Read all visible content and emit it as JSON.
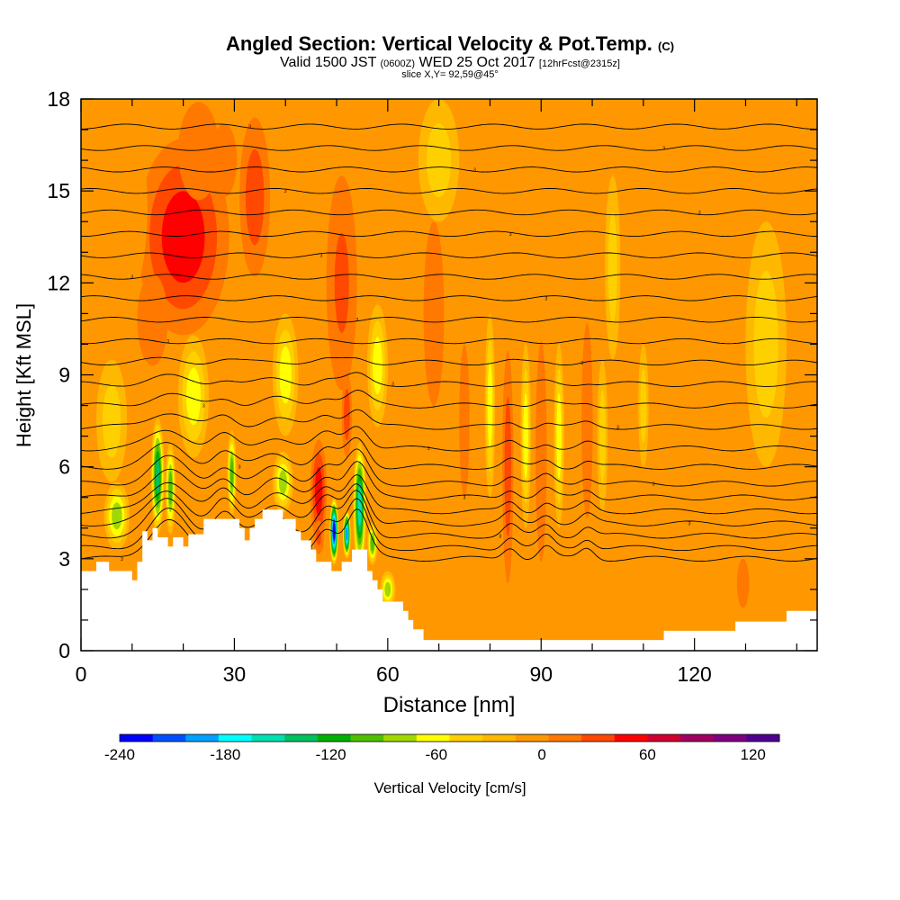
{
  "header": {
    "title_main": "Angled Section: Vertical Velocity & Pot.Temp.",
    "title_badge": "(C)",
    "subtitle_a": "Valid 1500 JST",
    "subtitle_b": "(0600Z)",
    "subtitle_c": "WED 25 Oct 2017",
    "subtitle_d": "[12hrFcst@2315z]",
    "slice_info": "slice X,Y= 92,59@45°"
  },
  "chart_data": {
    "type": "heatmap",
    "title": "Angled Section: Vertical Velocity & Pot.Temp.",
    "xlabel": "Distance [nm]",
    "ylabel": "Height [Kft MSL]",
    "xlim": [
      0,
      144
    ],
    "ylim": [
      0,
      18
    ],
    "x_ticks": [
      0,
      30,
      60,
      90,
      120
    ],
    "x_tick_labels": [
      "0",
      "30",
      "60",
      "90",
      "120"
    ],
    "y_ticks": [
      0,
      3,
      6,
      9,
      12,
      15,
      18
    ],
    "y_tick_labels": [
      "0",
      "3",
      "6",
      "9",
      "12",
      "15",
      "18"
    ],
    "colorbar": {
      "label": "Vertical Velocity [cm/s]",
      "min": -240,
      "max": 135,
      "step": 20,
      "tick_values": [
        -240,
        -180,
        -120,
        -60,
        0,
        60,
        120
      ],
      "tick_labels": [
        "-240",
        "-180",
        "-120",
        "-60",
        "0",
        "60",
        "120"
      ],
      "colors": [
        "#0000ff",
        "#0050ff",
        "#00a0ff",
        "#00ffff",
        "#00e0b0",
        "#00c060",
        "#00b000",
        "#50c000",
        "#a0d800",
        "#ffff00",
        "#ffd000",
        "#ffb800",
        "#ff9800",
        "#ff7800",
        "#ff4800",
        "#ff0000",
        "#d00030",
        "#a00060",
        "#800080",
        "#500090"
      ]
    },
    "background_value": 5,
    "terrain_kft": [
      [
        0,
        2.6
      ],
      [
        3,
        2.6
      ],
      [
        3,
        2.9
      ],
      [
        5.5,
        2.9
      ],
      [
        5.5,
        2.6
      ],
      [
        10,
        2.6
      ],
      [
        10,
        2.3
      ],
      [
        11,
        2.3
      ],
      [
        11,
        2.9
      ],
      [
        12,
        2.9
      ],
      [
        12,
        3.9
      ],
      [
        13,
        3.9
      ],
      [
        13,
        3.6
      ],
      [
        14,
        3.6
      ],
      [
        14,
        4.0
      ],
      [
        15,
        4.0
      ],
      [
        15,
        3.7
      ],
      [
        17,
        3.7
      ],
      [
        17,
        3.4
      ],
      [
        18,
        3.4
      ],
      [
        18,
        3.7
      ],
      [
        20,
        3.7
      ],
      [
        20,
        3.4
      ],
      [
        21,
        3.4
      ],
      [
        21,
        3.8
      ],
      [
        24,
        3.8
      ],
      [
        24,
        4.3
      ],
      [
        31,
        4.3
      ],
      [
        31,
        4.0
      ],
      [
        32,
        4.0
      ],
      [
        32,
        3.6
      ],
      [
        33,
        3.6
      ],
      [
        33,
        4.0
      ],
      [
        34,
        4.0
      ],
      [
        34,
        4.3
      ],
      [
        35.5,
        4.3
      ],
      [
        35.5,
        4.6
      ],
      [
        39.5,
        4.6
      ],
      [
        39.5,
        4.3
      ],
      [
        42,
        4.3
      ],
      [
        42,
        3.9
      ],
      [
        43,
        3.9
      ],
      [
        43,
        3.6
      ],
      [
        45,
        3.6
      ],
      [
        45,
        3.3
      ],
      [
        46,
        3.3
      ],
      [
        46,
        2.9
      ],
      [
        49,
        2.9
      ],
      [
        49,
        2.6
      ],
      [
        51,
        2.6
      ],
      [
        51,
        2.9
      ],
      [
        53,
        2.9
      ],
      [
        53,
        3.3
      ],
      [
        56,
        3.3
      ],
      [
        56,
        2.6
      ],
      [
        57,
        2.6
      ],
      [
        57,
        2.3
      ],
      [
        58,
        2.3
      ],
      [
        58,
        2.0
      ],
      [
        59,
        2.0
      ],
      [
        59,
        1.6
      ],
      [
        63,
        1.6
      ],
      [
        63,
        1.3
      ],
      [
        64,
        1.3
      ],
      [
        64,
        1.0
      ],
      [
        65,
        1.0
      ],
      [
        65,
        0.7
      ],
      [
        67,
        0.7
      ],
      [
        67,
        0.35
      ],
      [
        114,
        0.35
      ],
      [
        114,
        0.65
      ],
      [
        128,
        0.65
      ],
      [
        128,
        0.95
      ],
      [
        138,
        0.95
      ],
      [
        138,
        1.3
      ],
      [
        144,
        1.3
      ]
    ],
    "cells": [
      {
        "x": 20,
        "y": 13.5,
        "sx": 9,
        "sy": 3.2,
        "v": 65
      },
      {
        "x": 14,
        "y": 10.8,
        "sx": 3,
        "sy": 1.5,
        "v": 30
      },
      {
        "x": 23,
        "y": 16.3,
        "sx": 4,
        "sy": 1.6,
        "v": 30
      },
      {
        "x": 34,
        "y": 14.8,
        "sx": 3,
        "sy": 2.6,
        "v": 45
      },
      {
        "x": 28,
        "y": 16.0,
        "sx": 2.5,
        "sy": 1.2,
        "v": 28
      },
      {
        "x": 51,
        "y": 12.0,
        "sx": 3,
        "sy": 3.5,
        "v": 55
      },
      {
        "x": 52,
        "y": 7.7,
        "sx": 1,
        "sy": 1.4,
        "v": 40
      },
      {
        "x": 46.5,
        "y": 5.2,
        "sx": 1.6,
        "sy": 1.7,
        "v": 70
      },
      {
        "x": 46.5,
        "y": 3.7,
        "sx": 1.0,
        "sy": 0.55,
        "v": 55
      },
      {
        "x": 83.5,
        "y": 6.0,
        "sx": 1.1,
        "sy": 3.8,
        "v": 40
      },
      {
        "x": 90,
        "y": 6.5,
        "sx": 1.1,
        "sy": 3.6,
        "v": 35
      },
      {
        "x": 99,
        "y": 7.5,
        "sx": 1.1,
        "sy": 3.2,
        "v": 30
      },
      {
        "x": 75,
        "y": 7.5,
        "sx": 1.0,
        "sy": 2.5,
        "v": 25
      },
      {
        "x": 69,
        "y": 11,
        "sx": 2.0,
        "sy": 3.0,
        "v": 20
      },
      {
        "x": 129.5,
        "y": 2.2,
        "sx": 1.2,
        "sy": 0.8,
        "v": 25
      },
      {
        "x": 88,
        "y": 15,
        "sx": 3,
        "sy": 2,
        "v": 15
      },
      {
        "x": 9,
        "y": 14.5,
        "sx": 4,
        "sy": 3,
        "v": 18
      },
      {
        "x": 15,
        "y": 5.7,
        "sx": 1.3,
        "sy": 1.9,
        "v": -125
      },
      {
        "x": 17.5,
        "y": 5.3,
        "sx": 1.0,
        "sy": 1.5,
        "v": -100
      },
      {
        "x": 7,
        "y": 4.4,
        "sx": 2.5,
        "sy": 1.1,
        "v": -70
      },
      {
        "x": 29.5,
        "y": 5.8,
        "sx": 0.9,
        "sy": 1.4,
        "v": -90
      },
      {
        "x": 39.5,
        "y": 5.5,
        "sx": 2.0,
        "sy": 1.0,
        "v": -75
      },
      {
        "x": 49.5,
        "y": 3.9,
        "sx": 0.9,
        "sy": 1.1,
        "v": -240
      },
      {
        "x": 52,
        "y": 3.8,
        "sx": 0.8,
        "sy": 0.8,
        "v": -190
      },
      {
        "x": 54.5,
        "y": 4.7,
        "sx": 1.3,
        "sy": 2.1,
        "v": -160
      },
      {
        "x": 57,
        "y": 3.5,
        "sx": 1.0,
        "sy": 0.7,
        "v": -100
      },
      {
        "x": 60,
        "y": 2.0,
        "sx": 1.5,
        "sy": 0.6,
        "v": -70
      },
      {
        "x": 58,
        "y": 9.3,
        "sx": 2.0,
        "sy": 2.0,
        "v": -55
      },
      {
        "x": 40,
        "y": 9,
        "sx": 2.5,
        "sy": 2.0,
        "v": -55
      },
      {
        "x": 22,
        "y": 8.3,
        "sx": 3.0,
        "sy": 2.0,
        "v": -55
      },
      {
        "x": 87,
        "y": 7,
        "sx": 1.0,
        "sy": 3.0,
        "v": -45
      },
      {
        "x": 93.5,
        "y": 7,
        "sx": 1.0,
        "sy": 3.0,
        "v": -45
      },
      {
        "x": 80,
        "y": 8,
        "sx": 1.0,
        "sy": 3.0,
        "v": -45
      },
      {
        "x": 102,
        "y": 7,
        "sx": 1.0,
        "sy": 2.5,
        "v": -40
      },
      {
        "x": 110,
        "y": 8,
        "sx": 1.0,
        "sy": 2.0,
        "v": -35
      },
      {
        "x": 104,
        "y": 12.5,
        "sx": 1.5,
        "sy": 3.0,
        "v": -35
      },
      {
        "x": 134,
        "y": 10,
        "sx": 4,
        "sy": 4,
        "v": -25
      },
      {
        "x": 70,
        "y": 16,
        "sx": 4,
        "sy": 2,
        "v": -35
      },
      {
        "x": 6,
        "y": 7.5,
        "sx": 3,
        "sy": 2,
        "v": -35
      }
    ],
    "theta_contours": {
      "count": 24,
      "levels_kft": [
        3.0,
        3.35,
        3.75,
        4.15,
        4.55,
        5.0,
        5.45,
        6.0,
        6.6,
        7.3,
        8.0,
        8.7,
        9.4,
        10.1,
        10.8,
        11.5,
        12.2,
        12.9,
        13.6,
        14.3,
        15.0,
        15.7,
        16.4,
        17.1
      ],
      "bumps": [
        {
          "x": 17,
          "w": 5,
          "amp": 1.3
        },
        {
          "x": 28,
          "w": 3,
          "amp": 0.9
        },
        {
          "x": 38,
          "w": 4,
          "amp": 0.8
        },
        {
          "x": 48,
          "w": 3,
          "amp": 1.0
        },
        {
          "x": 54,
          "w": 3,
          "amp": 1.6
        },
        {
          "x": 84,
          "w": 2,
          "amp": 0.4
        },
        {
          "x": 91,
          "w": 2,
          "amp": 0.4
        },
        {
          "x": 99,
          "w": 2,
          "amp": 0.35
        }
      ],
      "label_text": "3"
    }
  }
}
